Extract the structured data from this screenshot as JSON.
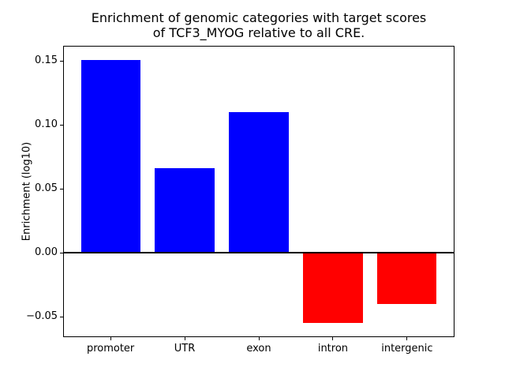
{
  "chart_data": {
    "type": "bar",
    "title": "Enrichment of genomic categories with target scores\nof TCF3_MYOG relative to all CRE.",
    "title_lines": [
      "Enrichment of genomic categories with target scores",
      "of TCF3_MYOG relative to all CRE."
    ],
    "xlabel": "",
    "ylabel": "Enrichment (log10)",
    "categories": [
      "promoter",
      "UTR",
      "exon",
      "intron",
      "intergenic"
    ],
    "values": [
      0.151,
      0.066,
      0.11,
      -0.055,
      -0.04
    ],
    "bar_colors": [
      "#0000ff",
      "#0000ff",
      "#0000ff",
      "#ff0000",
      "#ff0000"
    ],
    "positive_color": "#0000ff",
    "negative_color": "#ff0000",
    "axis_color": "#000000",
    "background_color": "#ffffff",
    "ylim": [
      -0.066,
      0.162
    ],
    "yticks": [
      {
        "value": 0.15,
        "label": "0.15"
      },
      {
        "value": 0.1,
        "label": "0.10"
      },
      {
        "value": 0.05,
        "label": "0.05"
      },
      {
        "value": 0.0,
        "label": "0.00"
      },
      {
        "value": -0.05,
        "label": "−0.05"
      }
    ],
    "bar_width_fraction": 0.8,
    "zero_line": true,
    "grid": false,
    "legend": "none"
  }
}
